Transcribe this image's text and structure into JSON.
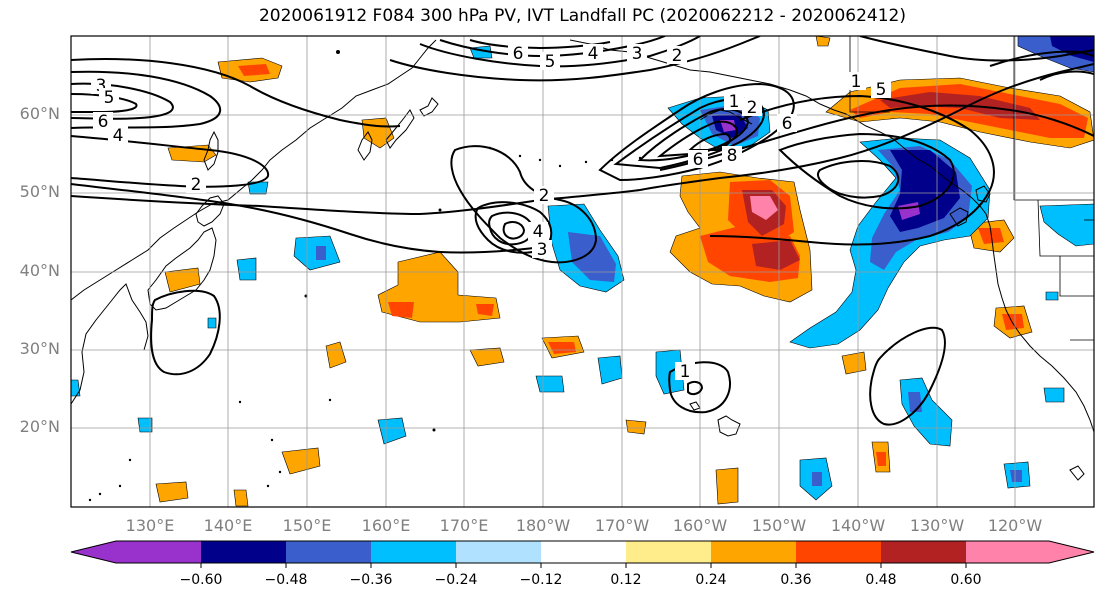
{
  "title": "2020061912 F084 300 hPa PV, IVT Landfall PC (2020062212 - 2020062412)",
  "lat_labels": [
    "60°N",
    "50°N",
    "40°N",
    "30°N",
    "20°N"
  ],
  "lon_labels": [
    "130°E",
    "140°E",
    "150°E",
    "160°E",
    "170°E",
    "180°W",
    "170°W",
    "160°W",
    "150°W",
    "140°W",
    "130°W",
    "120°W"
  ],
  "contour_labels": [
    "3",
    "5",
    "6",
    "4",
    "2",
    "6",
    "5",
    "4",
    "3",
    "2",
    "1",
    "2",
    "6",
    "8",
    "5",
    "1",
    "6",
    "2",
    "4",
    "3",
    "1"
  ],
  "colorbar": {
    "ticks": [
      "−0.60",
      "−0.48",
      "−0.36",
      "−0.24",
      "−0.12",
      "0.12",
      "0.24",
      "0.36",
      "0.48",
      "0.60"
    ],
    "tick_values": [
      -0.6,
      -0.48,
      -0.36,
      -0.24,
      -0.12,
      0.12,
      0.24,
      0.36,
      0.48,
      0.6
    ],
    "colors": [
      "#9932CC",
      "#00008B",
      "#3A5FCD",
      "#00BFFF",
      "#B0E2FF",
      "#FFFFFF",
      "#FFEC8B",
      "#FFA500",
      "#FF4500",
      "#B22222",
      "#FF82AB"
    ]
  }
}
